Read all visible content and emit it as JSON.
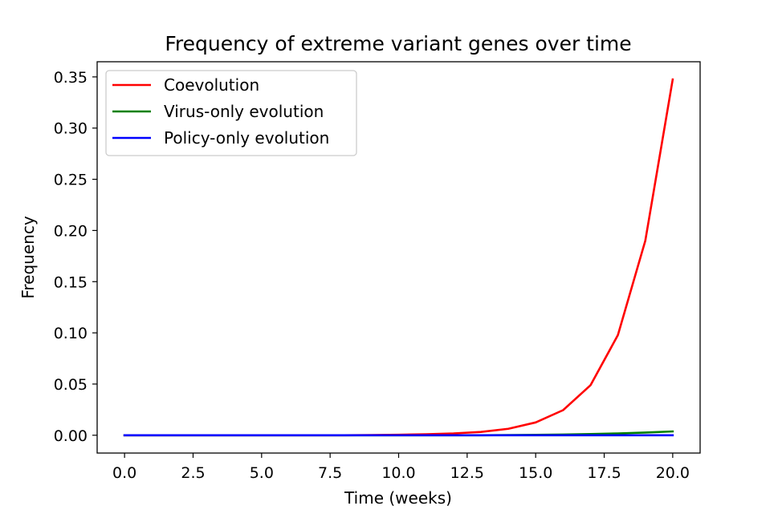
{
  "chart_data": {
    "type": "line",
    "title": "Frequency of extreme variant genes over time",
    "xlabel": "Time (weeks)",
    "ylabel": "Frequency",
    "xlim": [
      -1,
      21
    ],
    "ylim": [
      -0.0174,
      0.3648
    ],
    "xticks": [
      0,
      2.5,
      5,
      7.5,
      10,
      12.5,
      15,
      17.5,
      20
    ],
    "xtick_labels": [
      "0.0",
      "2.5",
      "5.0",
      "7.5",
      "10.0",
      "12.5",
      "15.0",
      "17.5",
      "20.0"
    ],
    "yticks": [
      0,
      0.05,
      0.1,
      0.15,
      0.2,
      0.25,
      0.3,
      0.35
    ],
    "ytick_labels": [
      "0.00",
      "0.05",
      "0.10",
      "0.15",
      "0.20",
      "0.25",
      "0.30",
      "0.35"
    ],
    "grid": false,
    "legend_position": "top-left",
    "x": [
      0,
      1,
      2,
      3,
      4,
      5,
      6,
      7,
      8,
      9,
      10,
      11,
      12,
      13,
      14,
      15,
      16,
      17,
      18,
      19,
      20
    ],
    "series": [
      {
        "name": "Coevolution",
        "color": "#ff0000",
        "values": [
          0,
          0,
          0,
          0,
          0,
          0,
          0,
          0,
          0,
          0.0002,
          0.0005,
          0.001,
          0.0018,
          0.0032,
          0.0063,
          0.0125,
          0.0245,
          0.0488,
          0.0978,
          0.19,
          0.3475
        ]
      },
      {
        "name": "Virus-only evolution",
        "color": "#008000",
        "values": [
          0,
          0,
          0,
          0,
          0,
          0,
          0,
          0,
          0,
          0,
          0,
          0,
          0,
          0,
          0.0002,
          0.0004,
          0.0007,
          0.0012,
          0.0018,
          0.0026,
          0.0037
        ]
      },
      {
        "name": "Policy-only evolution",
        "color": "#0000ff",
        "values": [
          0,
          0,
          0,
          0,
          0,
          0,
          0,
          0,
          0,
          0,
          0,
          0,
          0,
          0,
          0,
          0,
          0,
          0,
          0,
          0,
          0
        ]
      }
    ]
  }
}
